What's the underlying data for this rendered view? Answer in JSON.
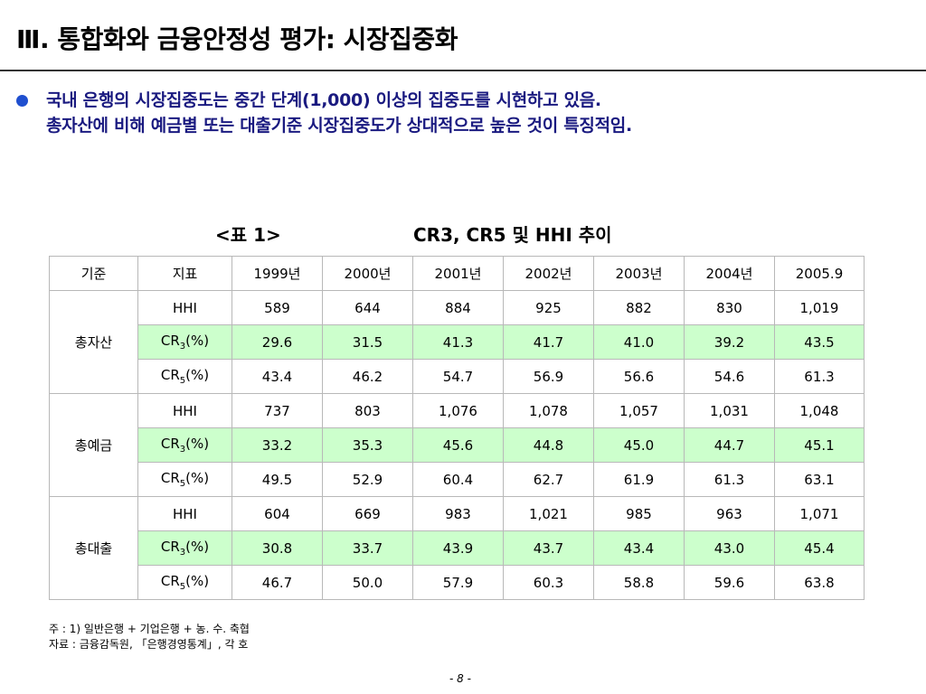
{
  "title": "Ⅲ. 통합화와 금융안정성 평가: 시장집중화",
  "bullet": {
    "line1": "국내 은행의 시장집중도는 중간 단계(1,000) 이상의 집중도를 시현하고 있음.",
    "line2": "총자산에 비해 예금별 또는 대출기준 시장집중도가 상대적으로 높은 것이 특징적임."
  },
  "caption": {
    "label": "<표 1>",
    "title": "CR3, CR5 및 HHI 추이"
  },
  "table": {
    "headers": [
      "기준",
      "지표",
      "1999년",
      "2000년",
      "2001년",
      "2002년",
      "2003년",
      "2004년",
      "2005.9"
    ],
    "groups": [
      {
        "name": "총자산",
        "rows": [
          {
            "indicator_main": "HHI",
            "indicator_sub": "",
            "indicator_tail": "",
            "values": [
              "589",
              "644",
              "884",
              "925",
              "882",
              "830",
              "1,019"
            ]
          },
          {
            "indicator_main": "CR",
            "indicator_sub": "3",
            "indicator_tail": "(%)",
            "values": [
              "29.6",
              "31.5",
              "41.3",
              "41.7",
              "41.0",
              "39.2",
              "43.5"
            ]
          },
          {
            "indicator_main": "CR",
            "indicator_sub": "5",
            "indicator_tail": "(%)",
            "values": [
              "43.4",
              "46.2",
              "54.7",
              "56.9",
              "56.6",
              "54.6",
              "61.3"
            ]
          }
        ]
      },
      {
        "name": "총예금",
        "rows": [
          {
            "indicator_main": "HHI",
            "indicator_sub": "",
            "indicator_tail": "",
            "values": [
              "737",
              "803",
              "1,076",
              "1,078",
              "1,057",
              "1,031",
              "1,048"
            ]
          },
          {
            "indicator_main": "CR",
            "indicator_sub": "3",
            "indicator_tail": "(%)",
            "values": [
              "33.2",
              "35.3",
              "45.6",
              "44.8",
              "45.0",
              "44.7",
              "45.1"
            ]
          },
          {
            "indicator_main": "CR",
            "indicator_sub": "5",
            "indicator_tail": "(%)",
            "values": [
              "49.5",
              "52.9",
              "60.4",
              "62.7",
              "61.9",
              "61.3",
              "63.1"
            ]
          }
        ]
      },
      {
        "name": "총대출",
        "rows": [
          {
            "indicator_main": "HHI",
            "indicator_sub": "",
            "indicator_tail": "",
            "values": [
              "604",
              "669",
              "983",
              "1,021",
              "985",
              "963",
              "1,071"
            ]
          },
          {
            "indicator_main": "CR",
            "indicator_sub": "3",
            "indicator_tail": "(%)",
            "values": [
              "30.8",
              "33.7",
              "43.9",
              "43.7",
              "43.4",
              "43.0",
              "45.4"
            ]
          },
          {
            "indicator_main": "CR",
            "indicator_sub": "5",
            "indicator_tail": "(%)",
            "values": [
              "46.7",
              "50.0",
              "57.9",
              "60.3",
              "58.8",
              "59.6",
              "63.8"
            ]
          }
        ]
      }
    ]
  },
  "notes": {
    "line1": "주 : 1) 일반은행 + 기업은행 + 농. 수. 축협",
    "line2": "자료 : 금융감독원, 「은행경영통계」, 각 호"
  },
  "page_number": "- 8 -",
  "colors": {
    "accent": "#1a1a80",
    "bullet": "#1f4fcf",
    "highlight_row": "#ccffcc"
  }
}
